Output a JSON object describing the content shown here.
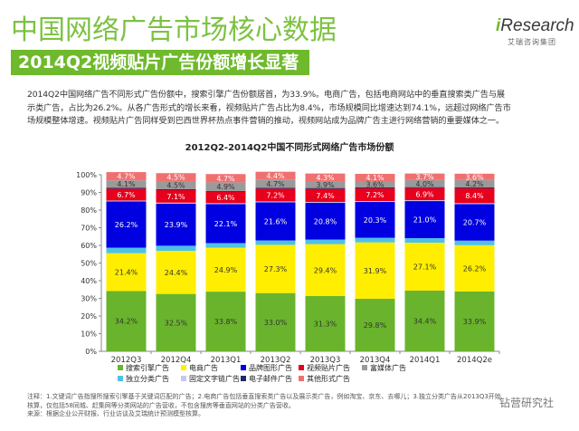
{
  "header": {
    "title": "中国网络广告市场核心数据",
    "subtitle": "2014Q2视频贴片广告份额增长显著",
    "logo_text_i": "i",
    "logo_text_rest": "Research",
    "logo_sub": "艾瑞咨询集团"
  },
  "description": {
    "line1": "2014Q2中国网络广告不同形式广告份额中，搜索引擎广告份额居首，为33.9%。电商广告，包括电商网站中的垂直搜索类广告与展",
    "line2": "示类广告，占比为26.2%。从各广告形式的增长来看，视频贴片广告占比为8.4%，市场规模同比增速达到74.1%，远超过网络广告市",
    "line3": "场规模整体增速。视频贴片广告同样受到巴西世界杯热点事件营销的推动，视频网站成为品牌广告主进行网络营销的重要媒体之一。"
  },
  "chart_data": {
    "type": "bar",
    "stacked": true,
    "title": "2012Q2-2014Q2中国不同形式网络广告市场份额",
    "categories": [
      "2012Q3",
      "2012Q4",
      "2013Q1",
      "2013Q2",
      "2013Q3",
      "2013Q4",
      "2014Q1",
      "2014Q2e"
    ],
    "ylim": [
      0,
      100
    ],
    "y_ticks": [
      "0%",
      "10%",
      "20%",
      "30%",
      "40%",
      "50%",
      "60%",
      "70%",
      "80%",
      "90%",
      "100%"
    ],
    "legend_position": "bottom",
    "series": [
      {
        "name": "搜索引擎广告",
        "color": "#6ab42d",
        "values": [
          34.2,
          32.5,
          33.8,
          33.0,
          31.3,
          29.8,
          34.4,
          33.9
        ],
        "labels": [
          "34.2%",
          "32.5%",
          "33.8%",
          "33.0%",
          "31.3%",
          "29.8%",
          "34.4%",
          "33.9%"
        ]
      },
      {
        "name": "电商广告",
        "color": "#ffee00",
        "values": [
          21.4,
          24.4,
          24.9,
          27.3,
          29.4,
          31.9,
          27.1,
          26.2
        ],
        "labels": [
          "21.4%",
          "24.4%",
          "24.9%",
          "27.3%",
          "29.4%",
          "31.9%",
          "27.1%",
          "26.2%"
        ]
      },
      {
        "name": "独立分类广告",
        "color": "#4fc0e8",
        "values": [
          3.1,
          2.9,
          2.6,
          2.5,
          2.6,
          2.6,
          2.6,
          2.6
        ],
        "labels": [
          "",
          "",
          "",
          "",
          "",
          "",
          "",
          ""
        ]
      },
      {
        "name": "品牌图形广告",
        "color": "#0000e0",
        "values": [
          26.2,
          23.9,
          22.1,
          21.6,
          20.8,
          20.3,
          21.0,
          20.7
        ],
        "labels": [
          "26.2%",
          "23.9%",
          "22.1%",
          "21.6%",
          "20.8%",
          "20.3%",
          "21.0%",
          "20.7%"
        ]
      },
      {
        "name": "固定文字链广告",
        "color": "#c8c8ec",
        "values": [
          0.5,
          0.5,
          0.5,
          0.5,
          0.5,
          0.5,
          0.5,
          0.5
        ],
        "labels": [
          "",
          "",
          "",
          "",
          "",
          "",
          "",
          ""
        ]
      },
      {
        "name": "视频贴片广告",
        "color": "#e8001c",
        "values": [
          6.7,
          7.1,
          6.4,
          7.2,
          7.4,
          7.2,
          6.9,
          8.4
        ],
        "labels": [
          "6.7%",
          "7.1%",
          "6.4%",
          "7.2%",
          "7.4%",
          "7.2%",
          "6.9%",
          "8.4%"
        ]
      },
      {
        "name": "电子邮件广告",
        "color": "#1f2a6a",
        "values": [
          0.6,
          0.6,
          0.5,
          0.5,
          0.5,
          0.5,
          0.5,
          0.5
        ],
        "labels": [
          "",
          "",
          "",
          "",
          "",
          "",
          "",
          ""
        ]
      },
      {
        "name": "富媒体广告",
        "color": "#9a9a9a",
        "values": [
          4.1,
          4.5,
          4.9,
          4.7,
          3.9,
          3.6,
          4.0,
          4.2
        ],
        "labels": [
          "4.1%",
          "4.5%",
          "4.9%",
          "4.7%",
          "3.9%",
          "3.6%",
          "4.0%",
          "4.2%"
        ]
      },
      {
        "name": "其他形式广告",
        "color": "#f07070",
        "values": [
          4.7,
          4.5,
          4.7,
          4.4,
          4.3,
          4.1,
          3.7,
          3.6
        ],
        "labels": [
          "4.7%",
          "4.5%",
          "4.7%",
          "4.4%",
          "4.3%",
          "4.1%",
          "3.7%",
          "3.6%"
        ]
      }
    ],
    "legend_order": [
      "搜索引擎广告",
      "电商广告",
      "品牌图形广告",
      "视频贴片广告",
      "富媒体广告",
      "独立分类广告",
      "固定文字链广告",
      "电子邮件广告",
      "其他形式广告"
    ]
  },
  "notes": {
    "line1": "注释：1.文键词广告指搜所搜索引擎基于关键词匹配的广告；2.电商广告包括垂直搜索类广告以及展示类广告，例如淘宝、京东、去哪儿；3.独立分类广告从2013Q3开始",
    "line2": "核算，仅包括58同城、赶集网等分类网站的广告营收，不包含搜房等垂直网站的分类广告营收。",
    "line3": "来源：根据企业公开财报、行业访谈及艾瑞统计预测模型核算。"
  },
  "watermark": "钻营研究社"
}
